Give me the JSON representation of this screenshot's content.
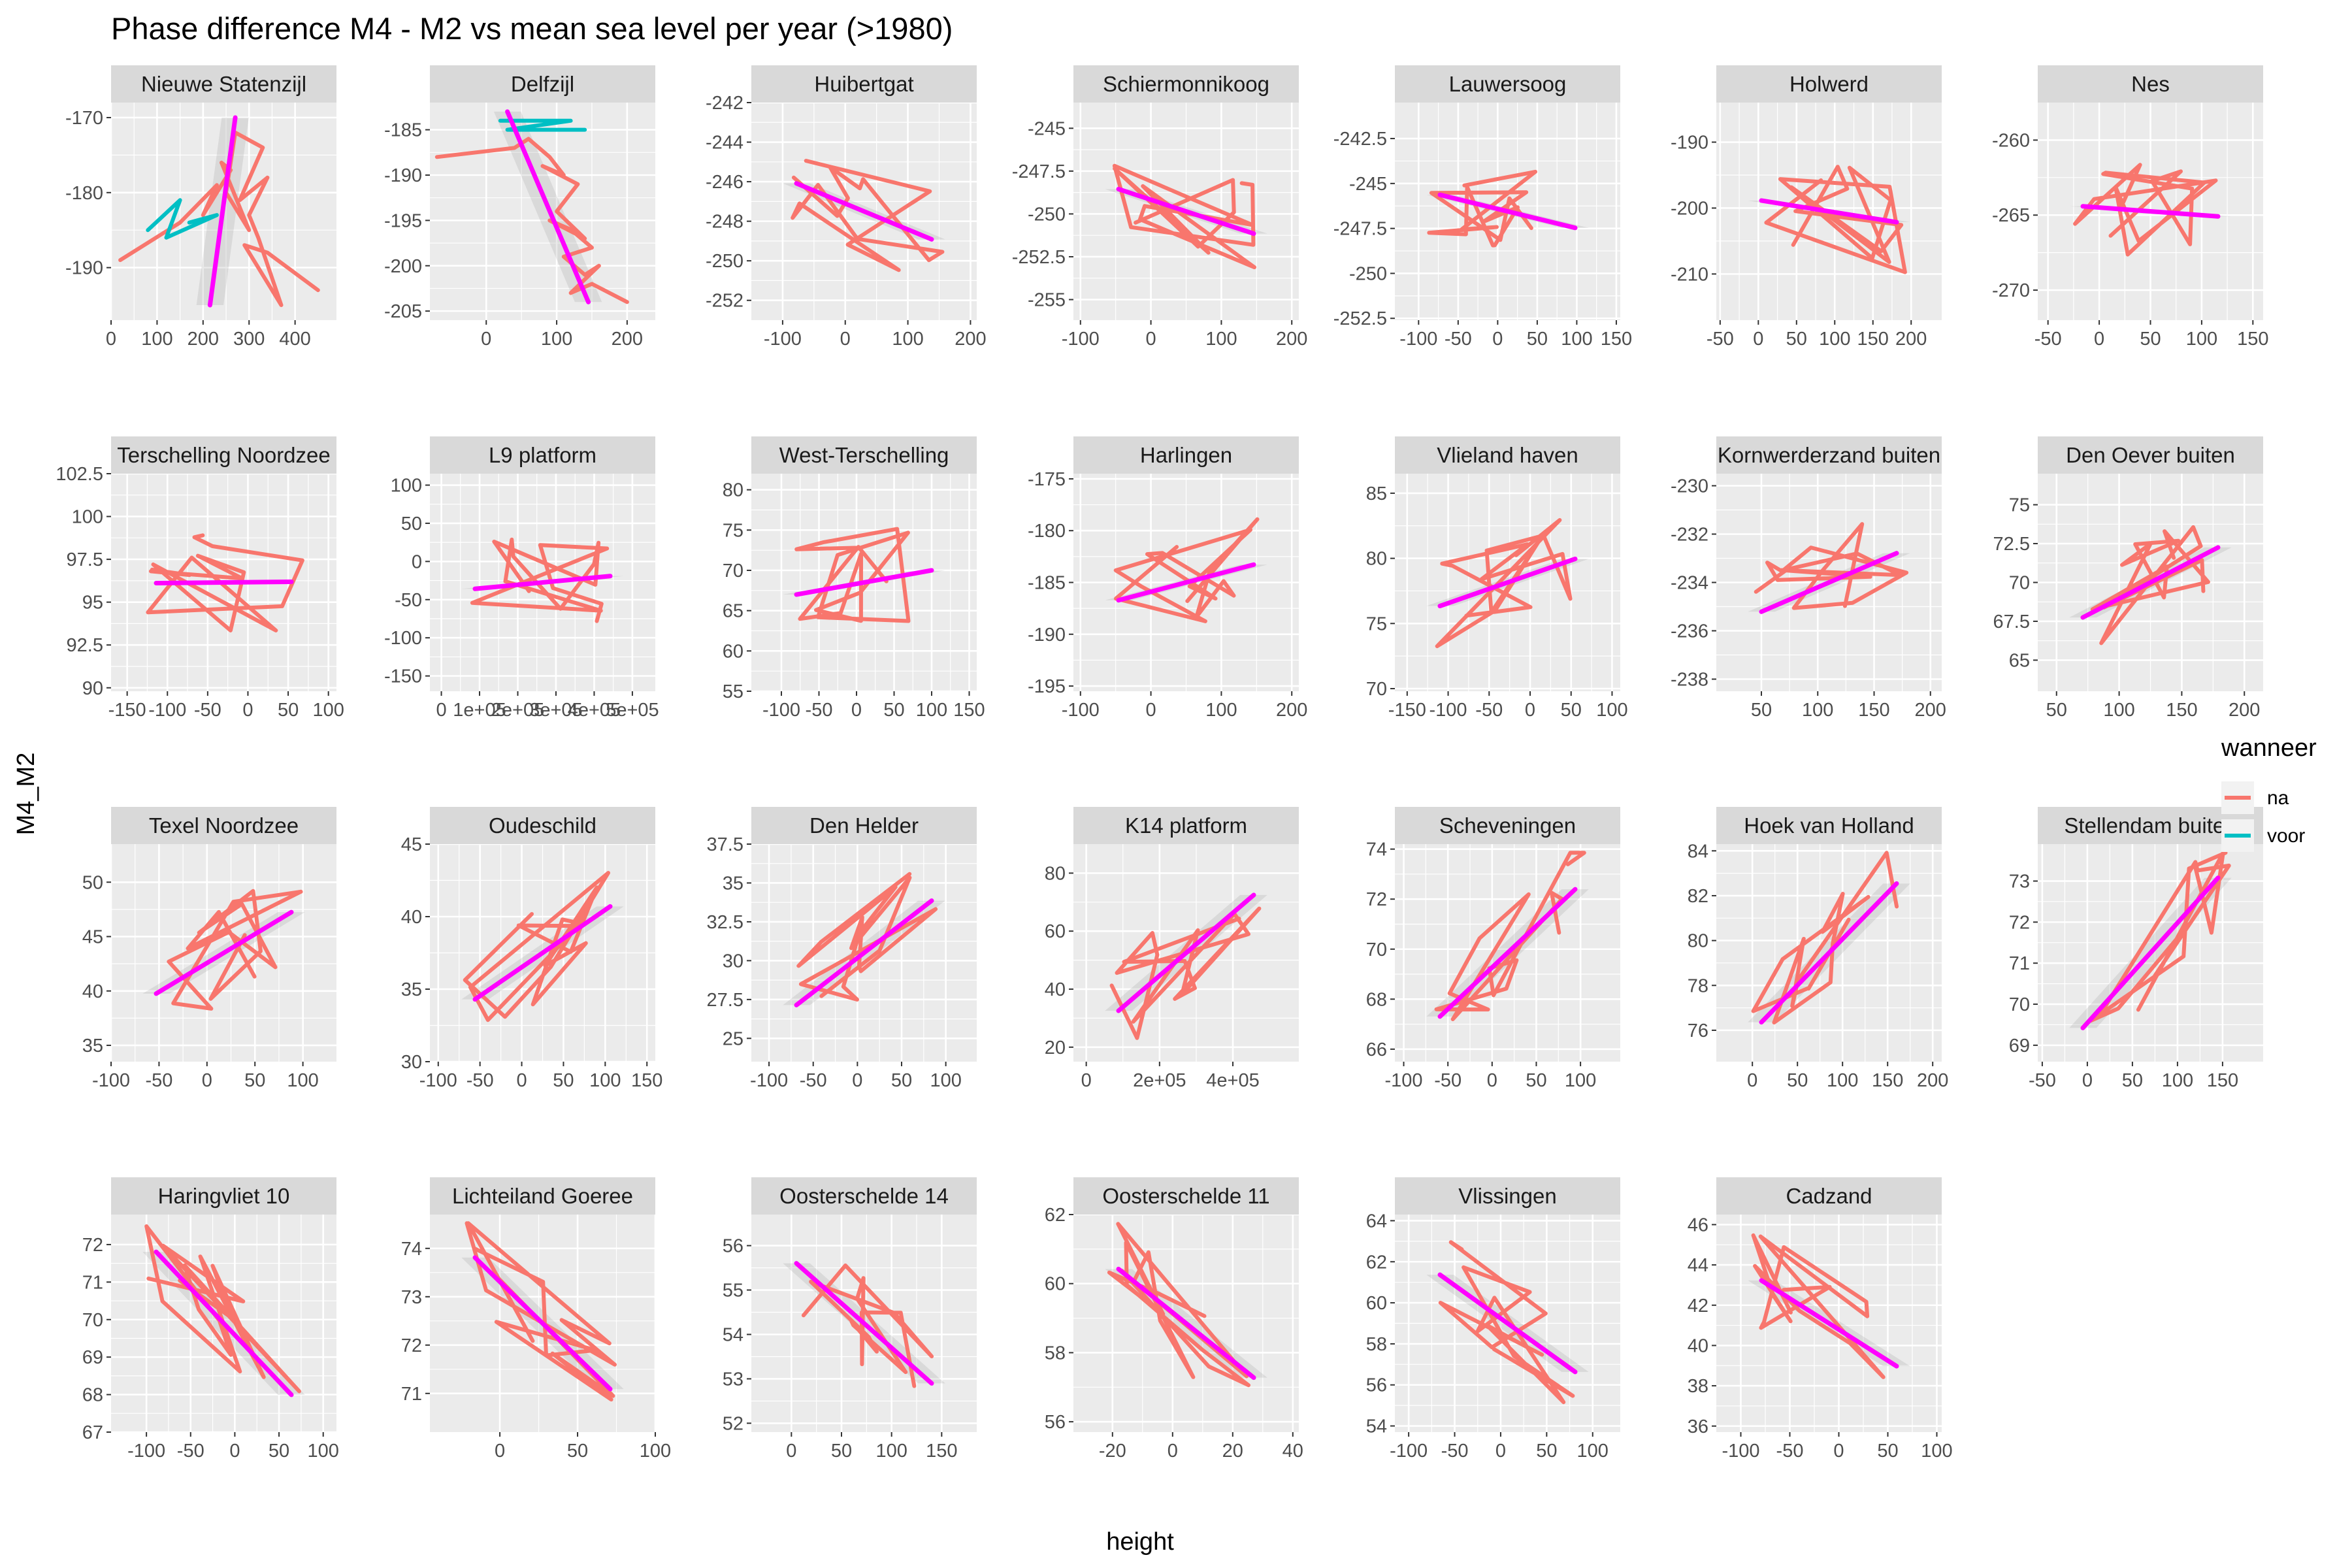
{
  "chart_data": {
    "type": "line",
    "title": "Phase difference M4 - M2 vs mean sea level per year (>1980)",
    "xlabel": "height",
    "ylabel": "M4_M2",
    "legend": {
      "title": "wanneer",
      "entries": [
        {
          "label": "na",
          "color": "#f8766d"
        },
        {
          "label": "voor",
          "color": "#00bfc4"
        }
      ],
      "position": "right"
    },
    "fit_color": "#ff00ff",
    "grid": true,
    "panels": [
      {
        "name": "Nieuwe Statenzijl",
        "xlim": [
          0,
          490
        ],
        "ylim": [
          -197,
          -168
        ],
        "xticks": [
          0,
          100,
          200,
          300,
          400
        ],
        "xtick_labels": [
          "0",
          "100",
          "200",
          "300",
          "400"
        ],
        "yticks": [
          -190,
          -180,
          -170
        ],
        "ytick_labels": [
          "-190",
          "-180",
          "-170"
        ],
        "series": [
          {
            "name": "na",
            "x": [
              20,
              150,
              230,
              200,
              260,
              240,
              300,
              250,
              270,
              330,
              280,
              340,
              300,
              320,
              370,
              290,
              340,
              450
            ],
            "y": [
              -189,
              -184,
              -179,
              -183,
              -177,
              -176,
              -185,
              -180,
              -172,
              -174,
              -181,
              -178,
              -183,
              -186,
              -195,
              -187,
              -188,
              -193
            ]
          },
          {
            "name": "voor",
            "x": [
              80,
              150,
              120,
              230,
              170
            ],
            "y": [
              -185,
              -181,
              -186,
              -183,
              -184
            ]
          }
        ],
        "fit": {
          "x": [
            215,
            270
          ],
          "y": [
            -195,
            -170
          ]
        }
      },
      {
        "name": "Delfzijl",
        "xlim": [
          -80,
          240
        ],
        "ylim": [
          -206,
          -182
        ],
        "xticks": [
          0,
          100,
          200
        ],
        "xtick_labels": [
          "0",
          "100",
          "200"
        ],
        "yticks": [
          -205,
          -200,
          -195,
          -190,
          -185
        ],
        "ytick_labels": [
          "-205",
          "-200",
          "-195",
          "-190",
          "-185"
        ],
        "series": [
          {
            "name": "na",
            "x": [
              -70,
              40,
              60,
              90,
              110,
              80,
              130,
              100,
              140,
              90,
              120,
              150,
              110,
              140,
              160,
              120,
              150,
              200
            ],
            "y": [
              -188,
              -187,
              -186,
              -188,
              -190,
              -189,
              -191,
              -194,
              -197,
              -195,
              -196,
              -198,
              -199,
              -201,
              -200,
              -203,
              -202,
              -204
            ]
          },
          {
            "name": "voor",
            "x": [
              20,
              120,
              30,
              140
            ],
            "y": [
              -184,
              -184,
              -185,
              -185
            ]
          }
        ],
        "fit": {
          "x": [
            30,
            145
          ],
          "y": [
            -183,
            -204
          ]
        }
      },
      {
        "name": "Huibertgat",
        "xlim": [
          -150,
          210
        ],
        "ylim": [
          -253,
          -242
        ]
      },
      {
        "name": "Schiermonnikoog",
        "xlim": [
          -110,
          210
        ],
        "ylim": [
          -256.2,
          -243.5
        ]
      },
      {
        "name": "Lauwersoog",
        "xlim": [
          -130,
          155
        ],
        "ylim": [
          -252.6,
          -240.5
        ]
      },
      {
        "name": "Holwerd",
        "xlim": [
          -55,
          240
        ],
        "ylim": [
          -217,
          -184
        ]
      },
      {
        "name": "Nes",
        "xlim": [
          -60,
          160
        ],
        "ylim": [
          -272,
          -257.5
        ]
      },
      {
        "name": "Terschelling Noordzee",
        "xlim": [
          -170,
          110
        ],
        "ylim": [
          89.8,
          102.5
        ]
      },
      {
        "name": "L9 platform",
        "xlim": [
          -30000,
          560000
        ],
        "ylim": [
          -170,
          115
        ]
      },
      {
        "name": "West-Terschelling",
        "xlim": [
          -140,
          160
        ],
        "ylim": [
          55,
          82
        ]
      },
      {
        "name": "Harlingen",
        "xlim": [
          -110,
          210
        ],
        "ylim": [
          -195.5,
          -174.5
        ]
      },
      {
        "name": "Vlieland haven",
        "xlim": [
          -165,
          110
        ],
        "ylim": [
          69.8,
          86.5
        ]
      },
      {
        "name": "Kornwerderzand buiten",
        "xlim": [
          10,
          210
        ],
        "ylim": [
          -238.5,
          -229.5
        ]
      },
      {
        "name": "Den Oever buiten",
        "xlim": [
          35,
          215
        ],
        "ylim": [
          63,
          77
        ]
      },
      {
        "name": "Texel Noordzee",
        "xlim": [
          -100,
          135
        ],
        "ylim": [
          33.5,
          53.5
        ]
      },
      {
        "name": "Oudeschild",
        "xlim": [
          -110,
          160
        ],
        "ylim": [
          30,
          45
        ]
      },
      {
        "name": "Den Helder",
        "xlim": [
          -120,
          135
        ],
        "ylim": [
          23.5,
          37.5
        ]
      },
      {
        "name": "K14 platform",
        "xlim": [
          -35000,
          580000
        ],
        "ylim": [
          15,
          90
        ]
      },
      {
        "name": "Scheveningen",
        "xlim": [
          -110,
          145
        ],
        "ylim": [
          65.5,
          74.2
        ]
      },
      {
        "name": "Hoek van Holland",
        "xlim": [
          -40,
          210
        ],
        "ylim": [
          74.6,
          84.3
        ]
      },
      {
        "name": "Stellendam buiten",
        "xlim": [
          -55,
          195
        ],
        "ylim": [
          68.6,
          73.9
        ]
      },
      {
        "name": "Haringvliet 10",
        "xlim": [
          -140,
          115
        ],
        "ylim": [
          67,
          72.8
        ]
      },
      {
        "name": "Lichteiland Goeree",
        "xlim": [
          -45,
          100
        ],
        "ylim": [
          70.2,
          74.7
        ]
      },
      {
        "name": "Oosterschelde 14",
        "xlim": [
          -40,
          185
        ],
        "ylim": [
          51.8,
          56.7
        ]
      },
      {
        "name": "Oosterschelde 11",
        "xlim": [
          -33,
          42
        ],
        "ylim": [
          55.7,
          62
        ]
      },
      {
        "name": "Vlissingen",
        "xlim": [
          -115,
          130
        ],
        "ylim": [
          53.7,
          64.3
        ]
      },
      {
        "name": "Cadzand",
        "xlim": [
          -125,
          105
        ],
        "ylim": [
          35.7,
          46.5
        ]
      }
    ]
  }
}
